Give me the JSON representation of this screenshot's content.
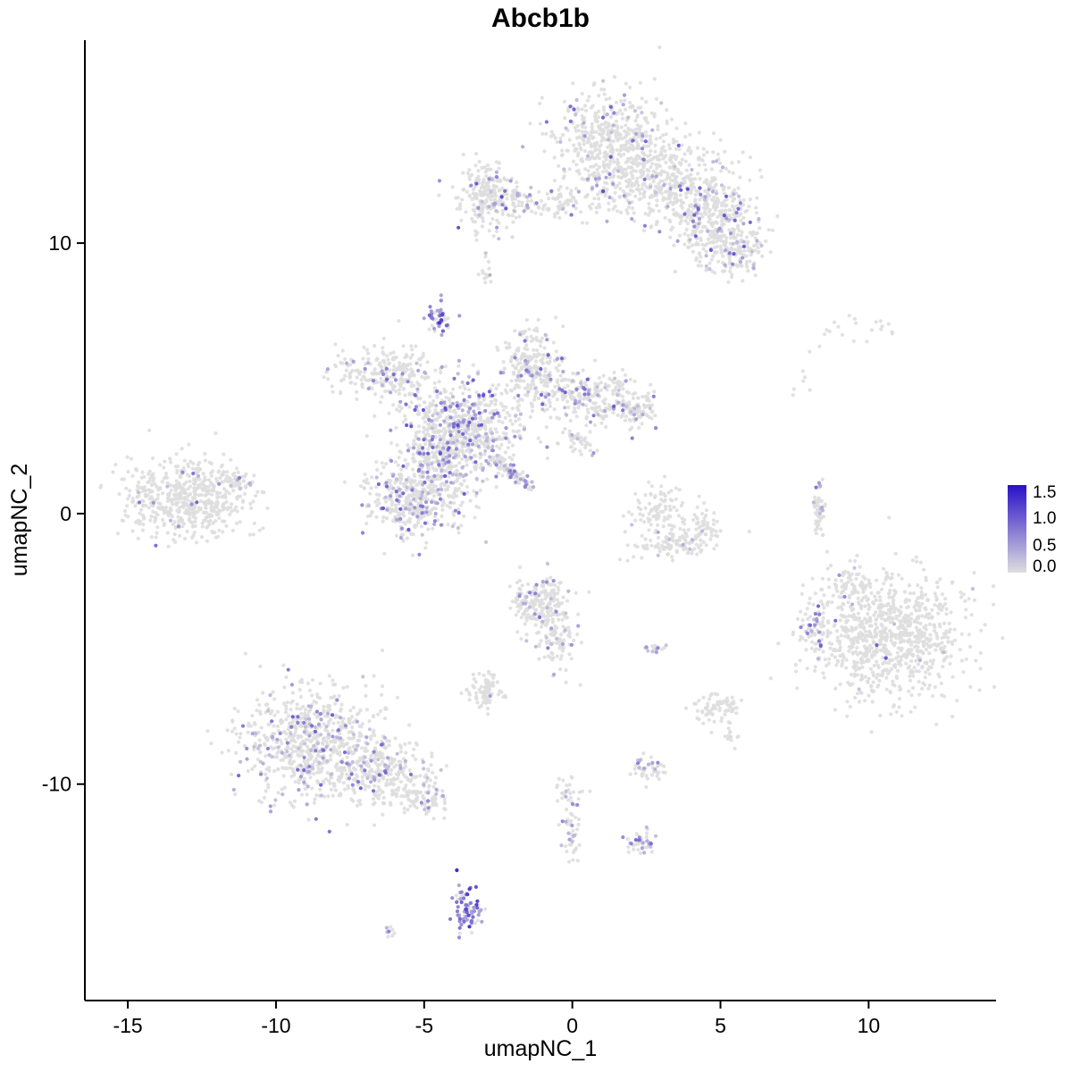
{
  "title": "Abcb1b",
  "axes": {
    "x_label": "umapNC_1",
    "y_label": "umapNC_2"
  },
  "legend": {
    "tick_labels": [
      "1.5",
      "1.0",
      "0.5",
      "0.0"
    ],
    "tick_values": [
      1.5,
      1.0,
      0.5,
      0.0
    ],
    "low_color": "#DEDEDE",
    "high_color": "#2810C8",
    "vmin": 0,
    "vmax": 1.6
  },
  "chart_data": {
    "type": "scatter",
    "title": "Abcb1b",
    "xlabel": "umapNC_1",
    "ylabel": "umapNC_2",
    "xlim": [
      -16.45,
      14.3
    ],
    "ylim": [
      -18.0,
      17.5
    ],
    "x_ticks": [
      -15,
      -10,
      -5,
      0,
      5,
      10
    ],
    "y_ticks": [
      10,
      0,
      -10
    ],
    "grid": false,
    "legend_position": "right",
    "point_radius": 2.1,
    "color_low": "#DEDEDE",
    "color_high": "#2810C8",
    "value_domain": [
      0,
      1.6
    ],
    "clusters": [
      {
        "name": "top-right-main-upper",
        "cx": 1.3,
        "cy": 13.8,
        "sx": 0.95,
        "sy": 0.95,
        "n": 480,
        "efrac": 0.1,
        "emax": 1.3
      },
      {
        "name": "top-right-main-mid",
        "cx": 3.1,
        "cy": 12.5,
        "sx": 1.0,
        "sy": 0.8,
        "n": 360,
        "efrac": 0.1,
        "emax": 1.3
      },
      {
        "name": "top-right-arm",
        "cx": 4.6,
        "cy": 11.2,
        "sx": 0.85,
        "sy": 0.75,
        "n": 300,
        "efrac": 0.12,
        "emax": 1.2
      },
      {
        "name": "top-right-lower-lobe",
        "cx": 5.3,
        "cy": 9.8,
        "sx": 0.65,
        "sy": 0.55,
        "n": 190,
        "efrac": 0.12,
        "emax": 1.2
      },
      {
        "name": "top-band",
        "cx": -0.6,
        "cy": 11.55,
        "sx": 1.4,
        "sy": 0.3,
        "n": 140,
        "efrac": 0.08,
        "emax": 1.0
      },
      {
        "name": "top-left-blob",
        "cx": -2.75,
        "cy": 11.7,
        "sx": 0.5,
        "sy": 0.6,
        "n": 230,
        "efrac": 0.12,
        "emax": 1.3
      },
      {
        "name": "tiny-dot-above-center",
        "cx": -2.9,
        "cy": 8.9,
        "sx": 0.13,
        "sy": 0.3,
        "n": 14,
        "efrac": 0.1,
        "emax": 0.6
      },
      {
        "name": "purple-blob",
        "cx": -4.55,
        "cy": 7.3,
        "sx": 0.2,
        "sy": 0.33,
        "n": 48,
        "efrac": 0.75,
        "emin": 0.5,
        "emax": 1.5
      },
      {
        "name": "central-core",
        "cx": -3.6,
        "cy": 3.2,
        "sx": 0.95,
        "sy": 0.85,
        "n": 620,
        "efrac": 0.22,
        "emax": 1.2
      },
      {
        "name": "central-upper-left-arm",
        "cx": -6.3,
        "cy": 5.2,
        "sx": 0.85,
        "sy": 0.5,
        "n": 240,
        "efrac": 0.1,
        "emax": 1.0
      },
      {
        "name": "central-top-arm",
        "cx": -1.3,
        "cy": 5.5,
        "sx": 0.5,
        "sy": 0.7,
        "n": 220,
        "efrac": 0.15,
        "emax": 1.1
      },
      {
        "name": "central-right-arm",
        "cx": 0.5,
        "cy": 4.3,
        "sx": 0.95,
        "sy": 0.5,
        "n": 260,
        "efrac": 0.15,
        "emax": 1.1
      },
      {
        "name": "central-right-tip",
        "cx": 2.2,
        "cy": 3.85,
        "sx": 0.35,
        "sy": 0.3,
        "n": 80,
        "efrac": 0.15,
        "emax": 1.0
      },
      {
        "name": "central-lower-left",
        "cx": -5.3,
        "cy": 0.6,
        "sx": 0.85,
        "sy": 0.8,
        "n": 460,
        "efrac": 0.22,
        "emax": 1.2
      },
      {
        "name": "central-bridge",
        "cx": -4.5,
        "cy": 2.0,
        "sx": 0.5,
        "sy": 0.5,
        "n": 150,
        "efrac": 0.2,
        "emax": 1.1
      },
      {
        "name": "central-diagonal-streak",
        "cx": -2.05,
        "cy": 1.5,
        "sx": 0.55,
        "sy": 0.12,
        "rot": -42,
        "n": 90,
        "efrac": 0.3,
        "emax": 0.9
      },
      {
        "name": "central-nub",
        "cx": 0.3,
        "cy": 2.7,
        "sx": 0.3,
        "sy": 0.25,
        "n": 40,
        "efrac": 0.1,
        "emax": 0.8
      },
      {
        "name": "left-cluster",
        "cx": -13.0,
        "cy": 0.6,
        "sx": 1.05,
        "sy": 0.7,
        "n": 560,
        "efrac": 0.04,
        "emax": 1.1
      },
      {
        "name": "left-cluster-edge",
        "cx": -11.3,
        "cy": 1.2,
        "sx": 0.3,
        "sy": 0.3,
        "n": 40,
        "efrac": 0.15,
        "emax": 1.1
      },
      {
        "name": "small-center-right-blob",
        "cx": 3.0,
        "cy": 0.2,
        "sx": 0.45,
        "sy": 0.4,
        "n": 90,
        "efrac": 0.06,
        "emax": 0.8
      },
      {
        "name": "crescent",
        "cx": 3.6,
        "cy": -1.0,
        "sx": 0.75,
        "sy": 0.28,
        "rot": 8,
        "n": 130,
        "efrac": 0.03,
        "emax": 0.6
      },
      {
        "name": "crescent-tip",
        "cx": 4.5,
        "cy": -0.35,
        "sx": 0.2,
        "sy": 0.3,
        "n": 35,
        "efrac": 0.03,
        "emax": 0.6
      },
      {
        "name": "thin-vertical-streak",
        "cx": 8.35,
        "cy": 0.2,
        "sx": 0.1,
        "sy": 0.55,
        "n": 55,
        "efrac": 0.15,
        "emax": 1.0
      },
      {
        "name": "right-cluster",
        "cx": 10.6,
        "cy": -4.6,
        "sx": 1.25,
        "sy": 1.15,
        "n": 880,
        "efrac": 0.015,
        "emax": 1.2
      },
      {
        "name": "right-cluster-appendage",
        "cx": 8.2,
        "cy": -4.35,
        "sx": 0.25,
        "sy": 0.4,
        "n": 55,
        "efrac": 0.4,
        "emax": 1.1
      },
      {
        "name": "right-cluster-top-nub",
        "cx": 9.3,
        "cy": -2.7,
        "sx": 0.3,
        "sy": 0.35,
        "n": 55,
        "efrac": 0.05,
        "emax": 0.8
      },
      {
        "name": "small-mid-cluster",
        "cx": -1.1,
        "cy": -3.3,
        "sx": 0.5,
        "sy": 0.5,
        "n": 200,
        "efrac": 0.12,
        "emax": 1.0
      },
      {
        "name": "small-mid-tail",
        "cx": -0.5,
        "cy": -4.7,
        "sx": 0.35,
        "sy": 0.55,
        "n": 90,
        "efrac": 0.08,
        "emax": 0.9
      },
      {
        "name": "tiny-dash",
        "cx": 2.8,
        "cy": -5.0,
        "sx": 0.22,
        "sy": 0.09,
        "n": 18,
        "efrac": 0.5,
        "emax": 0.9
      },
      {
        "name": "small-blob-below-center",
        "cx": -2.9,
        "cy": -6.5,
        "sx": 0.33,
        "sy": 0.33,
        "n": 80,
        "efrac": 0.05,
        "emax": 0.7
      },
      {
        "name": "small-gray-blob-right",
        "cx": 4.9,
        "cy": -7.2,
        "sx": 0.38,
        "sy": 0.28,
        "n": 70,
        "efrac": 0.02,
        "emax": 0.5
      },
      {
        "name": "gray-specks-right",
        "cx": 5.4,
        "cy": -8.2,
        "sx": 0.2,
        "sy": 0.15,
        "n": 12,
        "efrac": 0.0,
        "emax": 0.0
      },
      {
        "name": "bottom-left-main",
        "cx": -8.8,
        "cy": -8.5,
        "sx": 1.15,
        "sy": 1.05,
        "n": 720,
        "efrac": 0.17,
        "emax": 1.1
      },
      {
        "name": "bottom-left-ext",
        "cx": -6.4,
        "cy": -9.6,
        "sx": 0.8,
        "sy": 0.55,
        "n": 260,
        "efrac": 0.15,
        "emax": 1.0
      },
      {
        "name": "bottom-left-tail",
        "cx": -4.9,
        "cy": -10.5,
        "sx": 0.4,
        "sy": 0.3,
        "n": 80,
        "efrac": 0.12,
        "emax": 0.9
      },
      {
        "name": "small-cluster-bottom-mid",
        "cx": 2.5,
        "cy": -9.4,
        "sx": 0.3,
        "sy": 0.28,
        "n": 45,
        "efrac": 0.25,
        "emax": 1.0
      },
      {
        "name": "trail-top",
        "cx": -0.2,
        "cy": -10.2,
        "sx": 0.3,
        "sy": 0.22,
        "n": 25,
        "efrac": 0.08,
        "emax": 0.7
      },
      {
        "name": "trail-streak",
        "cx": 0.0,
        "cy": -11.7,
        "sx": 0.17,
        "sy": 0.6,
        "n": 45,
        "efrac": 0.18,
        "emax": 0.9
      },
      {
        "name": "small-purple-bottom",
        "cx": 2.3,
        "cy": -12.2,
        "sx": 0.28,
        "sy": 0.24,
        "n": 40,
        "efrac": 0.35,
        "emax": 1.0
      },
      {
        "name": "bottom-purple-cluster",
        "cx": -3.6,
        "cy": -14.6,
        "sx": 0.28,
        "sy": 0.5,
        "n": 75,
        "efrac": 0.65,
        "emin": 0.5,
        "emax": 1.5
      },
      {
        "name": "bottom-dark-dot",
        "cx": -3.8,
        "cy": -13.2,
        "sx": 0.05,
        "sy": 0.05,
        "n": 1,
        "efrac": 1.0,
        "emin": 1.55,
        "emax": 1.6
      },
      {
        "name": "tiny-bottom-left-dot",
        "cx": -6.2,
        "cy": -15.4,
        "sx": 0.12,
        "sy": 0.1,
        "n": 9,
        "efrac": 0.3,
        "emax": 0.8
      },
      {
        "name": "sparse-top-right-1",
        "cx": 8.9,
        "cy": 6.7,
        "sx": 0.5,
        "sy": 0.35,
        "n": 12,
        "efrac": 0.0,
        "emax": 0.0
      },
      {
        "name": "sparse-top-right-2",
        "cx": 10.3,
        "cy": 6.9,
        "sx": 0.45,
        "sy": 0.3,
        "n": 10,
        "efrac": 0.0,
        "emax": 0.0
      },
      {
        "name": "sparse-right-dots",
        "cx": 7.9,
        "cy": 4.6,
        "sx": 0.3,
        "sy": 0.4,
        "n": 6,
        "efrac": 0.0,
        "emax": 0.0
      }
    ]
  }
}
